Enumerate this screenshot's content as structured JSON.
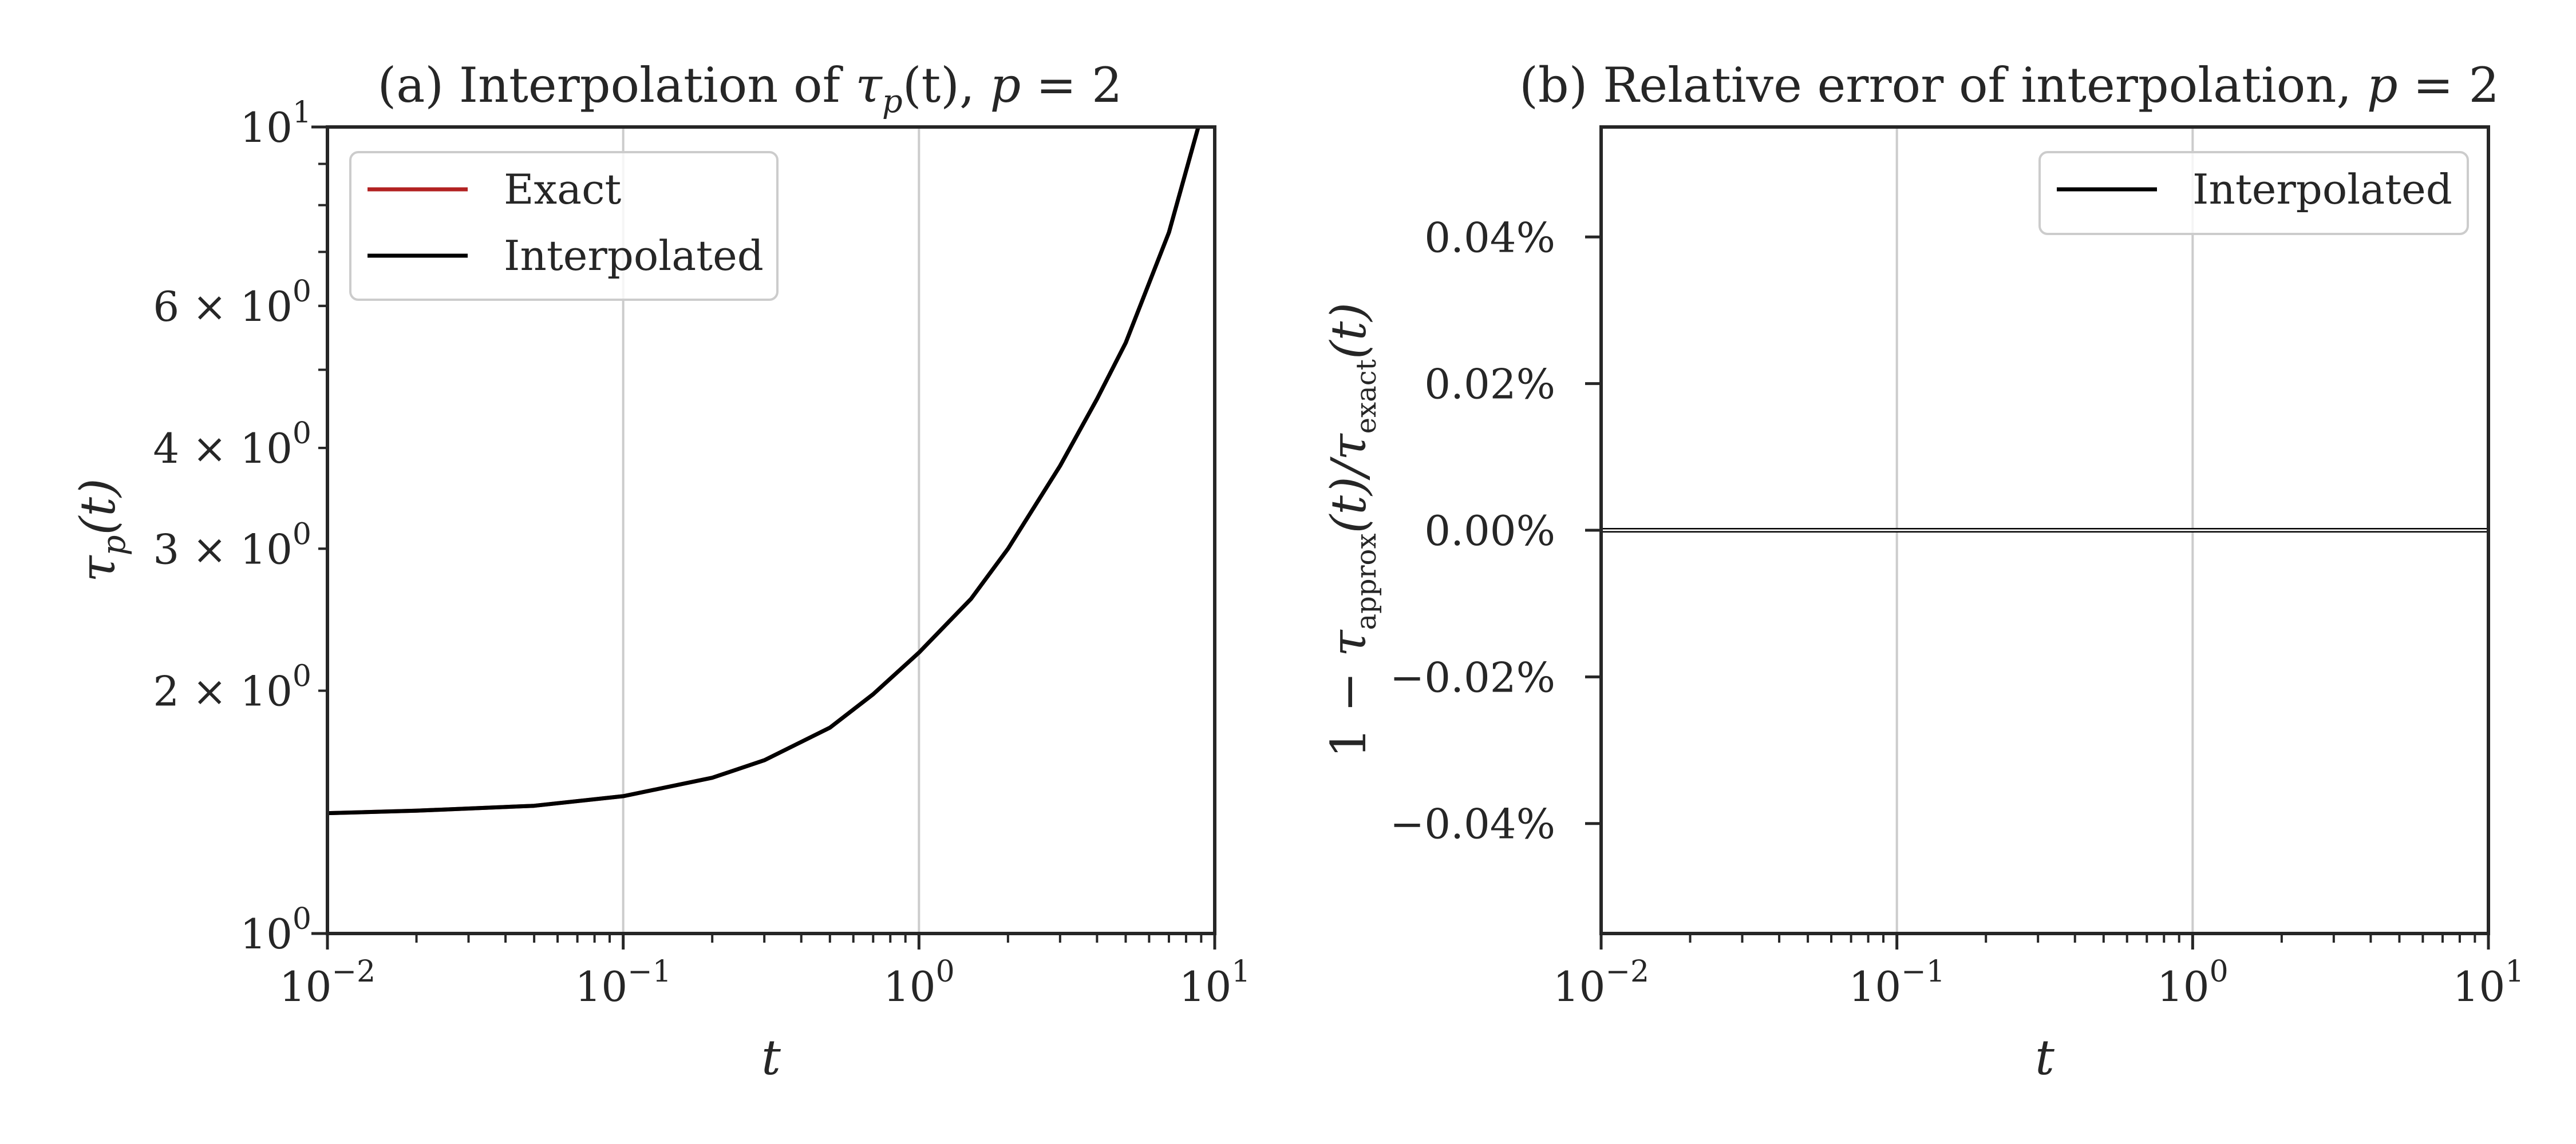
{
  "chart_data": [
    {
      "type": "line",
      "title": "(a) Interpolation of τp(t), p = 2",
      "title_parts": {
        "prefix": "(a) Interpolation of ",
        "symbol": "τ",
        "symbol_sub": "p",
        "arg": "(t), ",
        "param": "p",
        "eq": " = 2"
      },
      "xlabel": "t",
      "ylabel": "τp(t)",
      "ylabel_parts": {
        "symbol": "τ",
        "sub": "p",
        "arg": "(t)"
      },
      "x_scale": "log",
      "y_scale": "log",
      "xlim": [
        0.01,
        10
      ],
      "ylim": [
        1,
        10
      ],
      "x_ticks": [
        {
          "base": "10",
          "exp": "−2",
          "value": 0.01
        },
        {
          "base": "10",
          "exp": "−1",
          "value": 0.1
        },
        {
          "base": "10",
          "exp": "0",
          "value": 1
        },
        {
          "base": "10",
          "exp": "1",
          "value": 10
        }
      ],
      "y_ticks": [
        {
          "value": 1,
          "mant": "",
          "base": "10",
          "exp": "0"
        },
        {
          "value": 2,
          "mant": "2 × ",
          "base": "10",
          "exp": "0"
        },
        {
          "value": 3,
          "mant": "3 × ",
          "base": "10",
          "exp": "0"
        },
        {
          "value": 4,
          "mant": "4 × ",
          "base": "10",
          "exp": "0"
        },
        {
          "value": 6,
          "mant": "6 × ",
          "base": "10",
          "exp": "0"
        },
        {
          "value": 10,
          "mant": "",
          "base": "10",
          "exp": "1"
        }
      ],
      "grid": "vertical major lines",
      "legend": {
        "position": "upper-left",
        "entries": [
          {
            "label": "Exact",
            "color": "#b22222"
          },
          {
            "label": "Interpolated",
            "color": "#000000"
          }
        ]
      },
      "series": [
        {
          "name": "Exact",
          "color": "#b22222",
          "x": [
            0.01,
            0.02,
            0.05,
            0.1,
            0.2,
            0.3,
            0.5,
            0.7,
            1.0,
            1.5,
            2,
            3,
            4,
            5,
            7,
            8.8
          ],
          "y": [
            1.41,
            1.42,
            1.44,
            1.48,
            1.56,
            1.64,
            1.8,
            1.98,
            2.23,
            2.6,
            3.0,
            3.8,
            4.6,
            5.4,
            7.4,
            10.0
          ]
        },
        {
          "name": "Interpolated",
          "color": "#000000",
          "x": [
            0.01,
            0.02,
            0.05,
            0.1,
            0.2,
            0.3,
            0.5,
            0.7,
            1.0,
            1.5,
            2,
            3,
            4,
            5,
            7,
            8.8
          ],
          "y": [
            1.41,
            1.42,
            1.44,
            1.48,
            1.56,
            1.64,
            1.8,
            1.98,
            2.23,
            2.6,
            3.0,
            3.8,
            4.6,
            5.4,
            7.4,
            10.0
          ]
        }
      ]
    },
    {
      "type": "line",
      "title": "(b) Relative error of interpolation, p = 2",
      "title_parts": {
        "prefix": "(b) Relative error of interpolation, ",
        "param": "p",
        "eq": " = 2"
      },
      "xlabel": "t",
      "ylabel": "1 − τapprox(t)/τexact(t)",
      "ylabel_parts": {
        "lead": "1 − ",
        "sym1": "τ",
        "sub1": "approx",
        "mid": "(t)/",
        "sym2": "τ",
        "sub2": "exact",
        "tail": "(t)"
      },
      "x_scale": "log",
      "y_scale": "linear",
      "xlim": [
        0.01,
        10
      ],
      "ylim": [
        -0.055,
        0.055
      ],
      "x_ticks": [
        {
          "base": "10",
          "exp": "−2",
          "value": 0.01
        },
        {
          "base": "10",
          "exp": "−1",
          "value": 0.1
        },
        {
          "base": "10",
          "exp": "0",
          "value": 1
        },
        {
          "base": "10",
          "exp": "1",
          "value": 10
        }
      ],
      "y_ticks": [
        {
          "value": 0.04,
          "label": "0.04%"
        },
        {
          "value": 0.02,
          "label": "0.02%"
        },
        {
          "value": 0.0,
          "label": "0.00%"
        },
        {
          "value": -0.02,
          "label": "−0.02%"
        },
        {
          "value": -0.04,
          "label": "−0.04%"
        }
      ],
      "grid": "vertical major lines",
      "legend": {
        "position": "upper-right",
        "entries": [
          {
            "label": "Interpolated",
            "color": "#000000"
          }
        ]
      },
      "series": [
        {
          "name": "Interpolated",
          "color": "#000000",
          "x": [
            0.01,
            10
          ],
          "y": [
            0.0,
            0.0
          ]
        }
      ]
    }
  ]
}
